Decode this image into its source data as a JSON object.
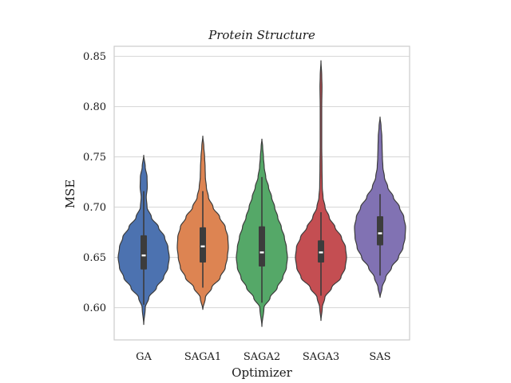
{
  "chart_data": {
    "type": "violin",
    "title": "Protein Structure",
    "xlabel": "Optimizer",
    "ylabel": "MSE",
    "ylim": [
      0.568,
      0.86
    ],
    "yticks": [
      0.6,
      0.65,
      0.7,
      0.75,
      0.8,
      0.85
    ],
    "ytick_labels": [
      "0.60",
      "0.65",
      "0.70",
      "0.75",
      "0.80",
      "0.85"
    ],
    "grid": true,
    "categories": [
      "GA",
      "SAGA1",
      "SAGA2",
      "SAGA3",
      "SAS"
    ],
    "series": [
      {
        "category": "GA",
        "color": "#4c72b0",
        "min": 0.583,
        "max": 0.752,
        "q1": 0.638,
        "median": 0.652,
        "q3": 0.672,
        "whisker_low": 0.603,
        "whisker_high": 0.716,
        "profile": [
          [
            0.583,
            0.0
          ],
          [
            0.6,
            0.06
          ],
          [
            0.61,
            0.2
          ],
          [
            0.62,
            0.5
          ],
          [
            0.63,
            0.78
          ],
          [
            0.64,
            0.95
          ],
          [
            0.65,
            1.0
          ],
          [
            0.66,
            0.95
          ],
          [
            0.67,
            0.82
          ],
          [
            0.68,
            0.58
          ],
          [
            0.69,
            0.3
          ],
          [
            0.7,
            0.13
          ],
          [
            0.71,
            0.1
          ],
          [
            0.72,
            0.14
          ],
          [
            0.73,
            0.13
          ],
          [
            0.74,
            0.06
          ],
          [
            0.752,
            0.0
          ]
        ]
      },
      {
        "category": "SAGA1",
        "color": "#dd8452",
        "min": 0.598,
        "max": 0.771,
        "q1": 0.645,
        "median": 0.661,
        "q3": 0.68,
        "whisker_low": 0.62,
        "whisker_high": 0.716,
        "profile": [
          [
            0.598,
            0.0
          ],
          [
            0.61,
            0.1
          ],
          [
            0.62,
            0.35
          ],
          [
            0.63,
            0.68
          ],
          [
            0.64,
            0.88
          ],
          [
            0.65,
            0.96
          ],
          [
            0.66,
            1.0
          ],
          [
            0.67,
            0.98
          ],
          [
            0.68,
            0.88
          ],
          [
            0.69,
            0.66
          ],
          [
            0.7,
            0.4
          ],
          [
            0.71,
            0.22
          ],
          [
            0.72,
            0.14
          ],
          [
            0.73,
            0.1
          ],
          [
            0.74,
            0.09
          ],
          [
            0.75,
            0.07
          ],
          [
            0.76,
            0.04
          ],
          [
            0.771,
            0.0
          ]
        ]
      },
      {
        "category": "SAGA2",
        "color": "#55a868",
        "min": 0.581,
        "max": 0.768,
        "q1": 0.641,
        "median": 0.655,
        "q3": 0.681,
        "whisker_low": 0.605,
        "whisker_high": 0.73,
        "profile": [
          [
            0.581,
            0.0
          ],
          [
            0.6,
            0.08
          ],
          [
            0.61,
            0.32
          ],
          [
            0.62,
            0.6
          ],
          [
            0.63,
            0.82
          ],
          [
            0.64,
            0.96
          ],
          [
            0.65,
            1.0
          ],
          [
            0.66,
            0.96
          ],
          [
            0.67,
            0.88
          ],
          [
            0.68,
            0.76
          ],
          [
            0.69,
            0.62
          ],
          [
            0.7,
            0.5
          ],
          [
            0.71,
            0.38
          ],
          [
            0.72,
            0.26
          ],
          [
            0.73,
            0.15
          ],
          [
            0.74,
            0.09
          ],
          [
            0.75,
            0.06
          ],
          [
            0.76,
            0.03
          ],
          [
            0.768,
            0.0
          ]
        ]
      },
      {
        "category": "SAGA3",
        "color": "#c44e52",
        "min": 0.587,
        "max": 0.846,
        "q1": 0.645,
        "median": 0.655,
        "q3": 0.667,
        "whisker_low": 0.612,
        "whisker_high": 0.695,
        "profile": [
          [
            0.587,
            0.0
          ],
          [
            0.6,
            0.05
          ],
          [
            0.61,
            0.15
          ],
          [
            0.62,
            0.42
          ],
          [
            0.63,
            0.78
          ],
          [
            0.64,
            0.95
          ],
          [
            0.65,
            1.0
          ],
          [
            0.66,
            0.96
          ],
          [
            0.67,
            0.8
          ],
          [
            0.68,
            0.55
          ],
          [
            0.69,
            0.32
          ],
          [
            0.7,
            0.16
          ],
          [
            0.71,
            0.08
          ],
          [
            0.72,
            0.05
          ],
          [
            0.74,
            0.04
          ],
          [
            0.76,
            0.03
          ],
          [
            0.8,
            0.03
          ],
          [
            0.82,
            0.04
          ],
          [
            0.83,
            0.03
          ],
          [
            0.846,
            0.0
          ]
        ]
      },
      {
        "category": "SAS",
        "color": "#8172b3",
        "min": 0.61,
        "max": 0.79,
        "q1": 0.662,
        "median": 0.674,
        "q3": 0.691,
        "whisker_low": 0.632,
        "whisker_high": 0.713,
        "profile": [
          [
            0.61,
            0.0
          ],
          [
            0.62,
            0.08
          ],
          [
            0.63,
            0.22
          ],
          [
            0.64,
            0.45
          ],
          [
            0.65,
            0.72
          ],
          [
            0.66,
            0.9
          ],
          [
            0.67,
            0.98
          ],
          [
            0.68,
            1.0
          ],
          [
            0.69,
            0.93
          ],
          [
            0.7,
            0.76
          ],
          [
            0.71,
            0.52
          ],
          [
            0.72,
            0.3
          ],
          [
            0.73,
            0.17
          ],
          [
            0.74,
            0.11
          ],
          [
            0.75,
            0.09
          ],
          [
            0.76,
            0.08
          ],
          [
            0.77,
            0.07
          ],
          [
            0.78,
            0.04
          ],
          [
            0.79,
            0.0
          ]
        ]
      }
    ]
  }
}
